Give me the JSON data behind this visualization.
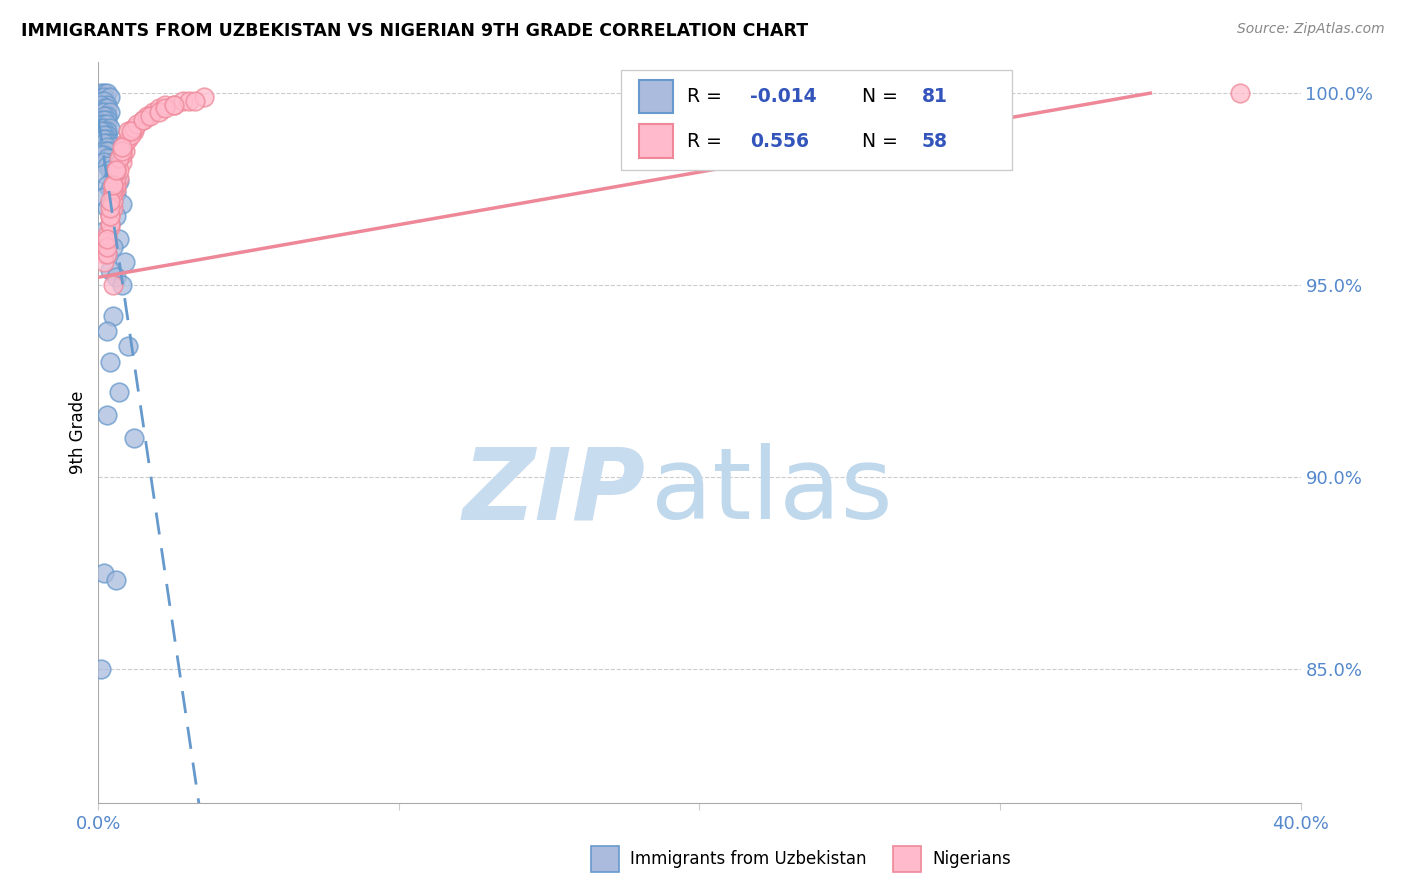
{
  "title": "IMMIGRANTS FROM UZBEKISTAN VS NIGERIAN 9TH GRADE CORRELATION CHART",
  "source": "Source: ZipAtlas.com",
  "ylabel": "9th Grade",
  "blue_label": "Immigrants from Uzbekistan",
  "pink_label": "Nigerians",
  "blue_R": -0.014,
  "blue_N": 81,
  "pink_R": 0.556,
  "pink_N": 58,
  "blue_color": "#6699cc",
  "pink_color": "#ee8899",
  "blue_fill": "#aabbdd",
  "pink_fill": "#ffbbcc",
  "legend_val_color": "#3355bb",
  "watermark_zip": "ZIP",
  "watermark_atlas": "atlas",
  "watermark_zip_color": "#c8dcf0",
  "watermark_atlas_color": "#c0d8ec",
  "background_color": "#ffffff",
  "grid_color": "#cccccc",
  "tick_color": "#5588cc",
  "x_min": 0.0,
  "x_max": 0.4,
  "y_min": 0.815,
  "y_max": 1.008,
  "y_ticks": [
    0.85,
    0.9,
    0.95,
    1.0
  ],
  "y_tick_labels": [
    "85.0%",
    "90.0%",
    "95.0%",
    "100.0%"
  ],
  "x_ticks": [
    0.0,
    0.1,
    0.2,
    0.3,
    0.4
  ],
  "x_tick_labels": [
    "0.0%",
    "",
    "",
    "",
    "40.0%"
  ],
  "blue_points_x": [
    0.001,
    0.002,
    0.001,
    0.003,
    0.002,
    0.001,
    0.004,
    0.002,
    0.003,
    0.001,
    0.002,
    0.003,
    0.001,
    0.002,
    0.004,
    0.003,
    0.002,
    0.001,
    0.003,
    0.002,
    0.001,
    0.002,
    0.003,
    0.001,
    0.002,
    0.004,
    0.003,
    0.002,
    0.001,
    0.003,
    0.002,
    0.001,
    0.003,
    0.002,
    0.004,
    0.003,
    0.002,
    0.005,
    0.003,
    0.002,
    0.004,
    0.003,
    0.002,
    0.001,
    0.004,
    0.003,
    0.005,
    0.002,
    0.006,
    0.003,
    0.004,
    0.002,
    0.005,
    0.007,
    0.003,
    0.004,
    0.006,
    0.002,
    0.005,
    0.008,
    0.003,
    0.006,
    0.004,
    0.002,
    0.007,
    0.005,
    0.003,
    0.009,
    0.004,
    0.006,
    0.008,
    0.005,
    0.003,
    0.01,
    0.004,
    0.007,
    0.003,
    0.012,
    0.002,
    0.006,
    0.001
  ],
  "blue_points_y": [
    1.0,
    1.0,
    0.999,
    1.0,
    0.999,
    0.998,
    0.999,
    0.998,
    0.997,
    0.997,
    0.996,
    0.996,
    0.995,
    0.995,
    0.995,
    0.994,
    0.994,
    0.993,
    0.993,
    0.993,
    0.992,
    0.992,
    0.992,
    0.991,
    0.991,
    0.991,
    0.99,
    0.99,
    0.99,
    0.989,
    0.989,
    0.988,
    0.988,
    0.988,
    0.987,
    0.987,
    0.987,
    0.986,
    0.986,
    0.985,
    0.985,
    0.985,
    0.984,
    0.984,
    0.983,
    0.983,
    0.982,
    0.982,
    0.981,
    0.981,
    0.98,
    0.979,
    0.978,
    0.977,
    0.976,
    0.975,
    0.974,
    0.973,
    0.972,
    0.971,
    0.97,
    0.968,
    0.966,
    0.964,
    0.962,
    0.96,
    0.958,
    0.956,
    0.954,
    0.952,
    0.95,
    0.942,
    0.938,
    0.934,
    0.93,
    0.922,
    0.916,
    0.91,
    0.875,
    0.873,
    0.85
  ],
  "pink_points_x": [
    0.001,
    0.002,
    0.003,
    0.004,
    0.002,
    0.005,
    0.003,
    0.004,
    0.006,
    0.003,
    0.005,
    0.004,
    0.007,
    0.003,
    0.005,
    0.006,
    0.004,
    0.008,
    0.005,
    0.003,
    0.006,
    0.004,
    0.009,
    0.005,
    0.007,
    0.004,
    0.01,
    0.006,
    0.008,
    0.005,
    0.012,
    0.007,
    0.009,
    0.006,
    0.011,
    0.008,
    0.015,
    0.01,
    0.012,
    0.008,
    0.018,
    0.013,
    0.016,
    0.011,
    0.02,
    0.015,
    0.022,
    0.017,
    0.025,
    0.02,
    0.028,
    0.022,
    0.03,
    0.025,
    0.035,
    0.032,
    0.38,
    0.005
  ],
  "pink_points_y": [
    0.96,
    0.958,
    0.962,
    0.965,
    0.956,
    0.97,
    0.963,
    0.968,
    0.975,
    0.958,
    0.972,
    0.966,
    0.978,
    0.96,
    0.974,
    0.976,
    0.968,
    0.982,
    0.975,
    0.962,
    0.978,
    0.97,
    0.985,
    0.976,
    0.98,
    0.972,
    0.988,
    0.98,
    0.984,
    0.976,
    0.99,
    0.983,
    0.987,
    0.98,
    0.989,
    0.985,
    0.993,
    0.99,
    0.991,
    0.986,
    0.995,
    0.992,
    0.994,
    0.99,
    0.996,
    0.993,
    0.997,
    0.994,
    0.997,
    0.995,
    0.998,
    0.996,
    0.998,
    0.997,
    0.999,
    0.998,
    1.0,
    0.95
  ]
}
